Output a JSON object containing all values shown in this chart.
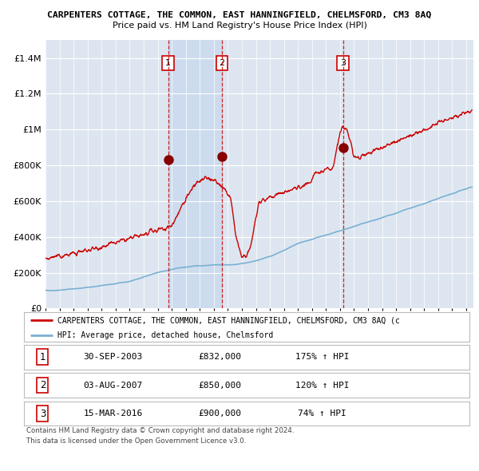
{
  "title": "CARPENTERS COTTAGE, THE COMMON, EAST HANNINGFIELD, CHELMSFORD, CM3 8AQ",
  "subtitle": "Price paid vs. HM Land Registry's House Price Index (HPI)",
  "red_legend": "CARPENTERS COTTAGE, THE COMMON, EAST HANNINGFIELD, CHELMSFORD, CM3 8AQ (c",
  "blue_legend": "HPI: Average price, detached house, Chelmsford",
  "transactions": [
    {
      "num": 1,
      "date": "30-SEP-2003",
      "price": 832000,
      "pct": "175%",
      "dir": "↑",
      "label": "HPI",
      "x_year": 2003.75
    },
    {
      "num": 2,
      "date": "03-AUG-2007",
      "price": 850000,
      "pct": "120%",
      "dir": "↑",
      "label": "HPI",
      "x_year": 2007.58
    },
    {
      "num": 3,
      "date": "15-MAR-2016",
      "price": 900000,
      "pct": "74%",
      "dir": "↑",
      "label": "HPI",
      "x_year": 2016.21
    }
  ],
  "footer1": "Contains HM Land Registry data © Crown copyright and database right 2024.",
  "footer2": "This data is licensed under the Open Government Licence v3.0.",
  "ylim": [
    0,
    1500000
  ],
  "xlim_start": 1995.0,
  "xlim_end": 2025.5,
  "bg_color": "#dde6f0",
  "grid_color": "#ffffff",
  "red_color": "#cc0000",
  "blue_color": "#7ab0d4",
  "highlight_color": "#ccdcee"
}
